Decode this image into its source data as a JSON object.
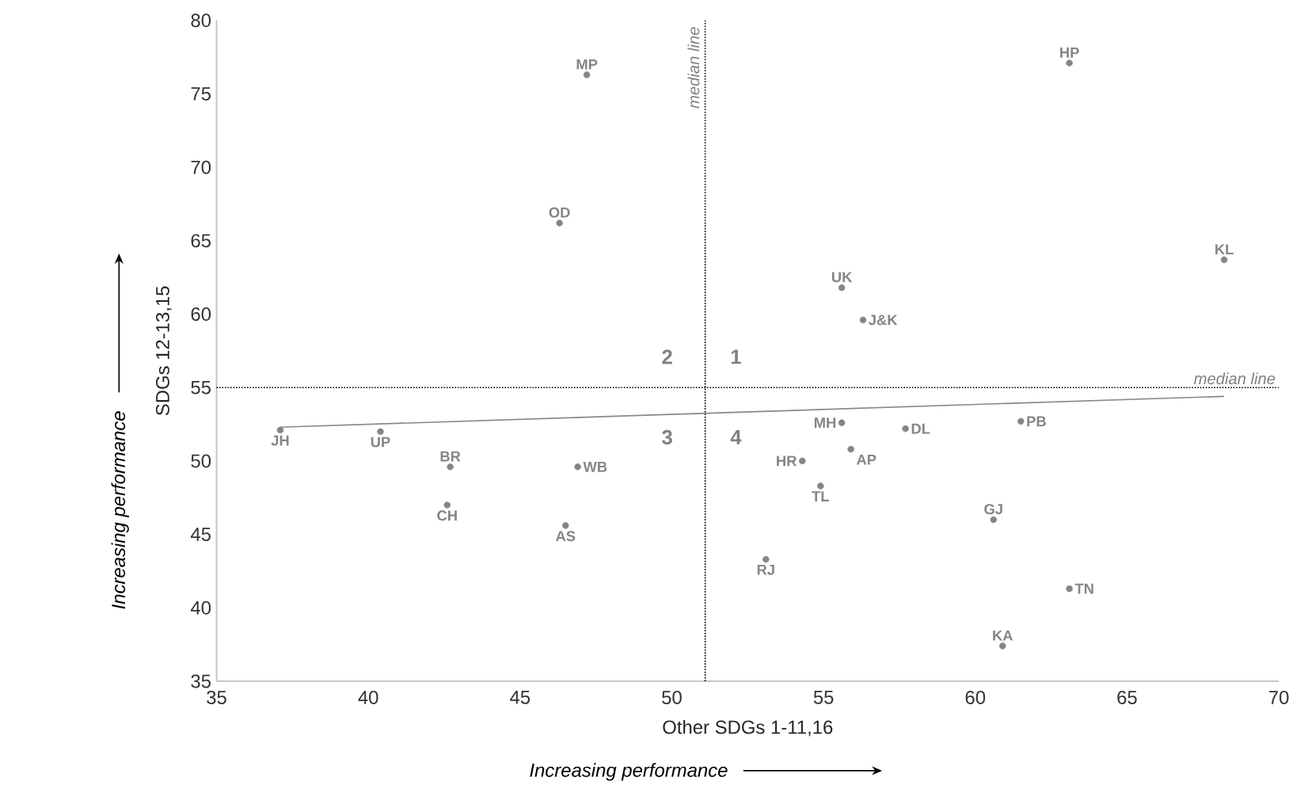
{
  "chart_data": {
    "type": "scatter",
    "xlabel": "Other SDGs 1-11,16",
    "ylabel": "SDGs 12-13,15",
    "xlim": [
      35,
      70
    ],
    "ylim": [
      35,
      80
    ],
    "xticks": [
      35,
      40,
      45,
      50,
      55,
      60,
      65,
      70
    ],
    "yticks": [
      35,
      40,
      45,
      50,
      55,
      60,
      65,
      70,
      75,
      80
    ],
    "marker": "circle",
    "series": [
      {
        "name": "MP",
        "color": "#858585",
        "x": [
          47.2
        ],
        "values": [
          76.3
        ]
      },
      {
        "name": "OD",
        "color": "#858585",
        "x": [
          46.3
        ],
        "values": [
          66.2
        ]
      },
      {
        "name": "HP",
        "color": "#858585",
        "x": [
          63.1
        ],
        "values": [
          77.1
        ]
      },
      {
        "name": "KL",
        "color": "#858585",
        "x": [
          68.2
        ],
        "values": [
          63.7
        ]
      },
      {
        "name": "UK",
        "color": "#858585",
        "x": [
          55.6
        ],
        "values": [
          61.8
        ]
      },
      {
        "name": "J&K",
        "color": "#858585",
        "x": [
          56.3
        ],
        "values": [
          59.6
        ]
      },
      {
        "name": "JH",
        "color": "#858585",
        "x": [
          37.1
        ],
        "values": [
          52.1
        ]
      },
      {
        "name": "UP",
        "color": "#858585",
        "x": [
          40.4
        ],
        "values": [
          52.0
        ]
      },
      {
        "name": "BR",
        "color": "#858585",
        "x": [
          42.7
        ],
        "values": [
          49.6
        ]
      },
      {
        "name": "CH",
        "color": "#858585",
        "x": [
          42.6
        ],
        "values": [
          47.0
        ]
      },
      {
        "name": "WB",
        "color": "#858585",
        "x": [
          46.9
        ],
        "values": [
          49.6
        ]
      },
      {
        "name": "AS",
        "color": "#858585",
        "x": [
          46.5
        ],
        "values": [
          45.6
        ]
      },
      {
        "name": "MH",
        "color": "#858585",
        "x": [
          55.6
        ],
        "values": [
          52.6
        ]
      },
      {
        "name": "DL",
        "color": "#858585",
        "x": [
          57.7
        ],
        "values": [
          52.2
        ]
      },
      {
        "name": "PB",
        "color": "#858585",
        "x": [
          61.5
        ],
        "values": [
          52.7
        ]
      },
      {
        "name": "HR",
        "color": "#858585",
        "x": [
          54.3
        ],
        "values": [
          50.0
        ]
      },
      {
        "name": "AP",
        "color": "#858585",
        "x": [
          55.9
        ],
        "values": [
          50.8
        ]
      },
      {
        "name": "TL",
        "color": "#858585",
        "x": [
          54.9
        ],
        "values": [
          48.3
        ]
      },
      {
        "name": "GJ",
        "color": "#858585",
        "x": [
          60.6
        ],
        "values": [
          46.0
        ]
      },
      {
        "name": "RJ",
        "color": "#858585",
        "x": [
          53.1
        ],
        "values": [
          43.3
        ]
      },
      {
        "name": "TN",
        "color": "#858585",
        "x": [
          63.1
        ],
        "values": [
          41.3
        ]
      },
      {
        "name": "KA",
        "color": "#858585",
        "x": [
          60.9
        ],
        "values": [
          37.4
        ]
      },
      {
        "type": "line",
        "marker": "none",
        "color": "#888888",
        "x": [
          37.1,
          68.2
        ],
        "values": [
          52.3,
          54.4
        ]
      }
    ],
    "ref_lines": [
      {
        "axis": "x",
        "value": 51.1,
        "label": "median line",
        "color": "#000000",
        "line_style": "dotted"
      },
      {
        "axis": "y",
        "value": 55,
        "label": "median line",
        "color": "#000000",
        "line_style": "dotted"
      }
    ],
    "annotations": [
      "Increasing performance",
      "Increasing performance",
      "1",
      "2",
      "3",
      "4"
    ]
  }
}
